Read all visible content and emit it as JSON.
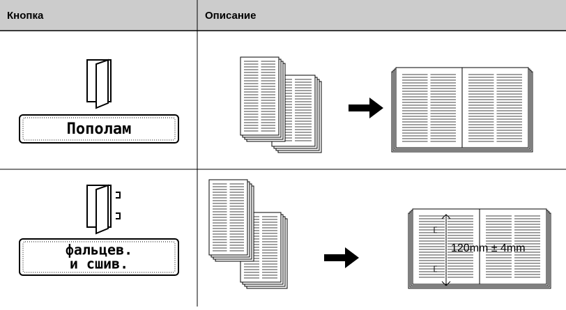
{
  "table": {
    "header": [
      "Кнопка",
      "Описание"
    ],
    "rows": [
      {
        "button": "Пополам"
      },
      {
        "button_lines": [
          "фальцев.",
          "и сшив."
        ],
        "annotation": "120mm ± 4mm"
      }
    ]
  }
}
